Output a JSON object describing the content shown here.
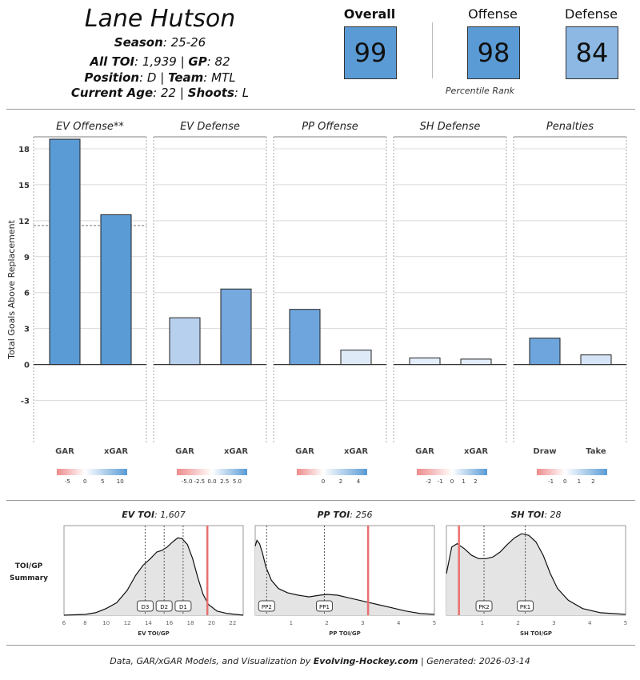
{
  "player": {
    "name": "Lane Hutson",
    "season_label": "Season",
    "season": "25-26",
    "toi_label": "All TOI",
    "toi": "1,939",
    "gp_label": "GP",
    "gp": "82",
    "position_label": "Position",
    "position": "D",
    "team_label": "Team",
    "team": "MTL",
    "age_label": "Current Age",
    "age": "22",
    "shoots_label": "Shoots",
    "shoots": "L"
  },
  "percentiles": {
    "overall_label": "Overall",
    "overall": "99",
    "overall_color": "#5b9bd5",
    "offense_label": "Offense",
    "offense": "98",
    "offense_color": "#5b9bd5",
    "defense_label": "Defense",
    "defense": "84",
    "defense_color": "#8cb8e3",
    "caption": "Percentile Rank"
  },
  "colors": {
    "blue": "#5b9bd5",
    "red": "#ef8a8a",
    "toi_line": "#e87070",
    "grid": "#d9d9d9"
  },
  "chart_data": [
    {
      "type": "bar",
      "ylabel": "Total Goals Above Replacement",
      "ylim": [
        -6.5,
        19
      ],
      "yticks": [
        -3,
        0,
        3,
        6,
        9,
        12,
        15,
        18
      ],
      "panels": [
        {
          "title": "EV Offense**",
          "categories": [
            "GAR",
            "xGAR"
          ],
          "values": [
            18.8,
            12.5
          ],
          "bar_colors": [
            "#5b9bd5",
            "#5b9bd5"
          ],
          "ref_line": 11.6,
          "legend": {
            "ticks": [
              "-5",
              "0",
              "5",
              "10"
            ],
            "range": [
              -8,
              12
            ]
          }
        },
        {
          "title": "EV Defense",
          "categories": [
            "GAR",
            "xGAR"
          ],
          "values": [
            3.9,
            6.3
          ],
          "bar_colors": [
            "#b6d0ee",
            "#76a9de"
          ],
          "legend": {
            "ticks": [
              "-5.0",
              "-2.5",
              "0.0",
              "2.5",
              "5.0"
            ],
            "range": [
              -7,
              7
            ]
          }
        },
        {
          "title": "PP Offense",
          "categories": [
            "GAR",
            "xGAR"
          ],
          "values": [
            4.6,
            1.2
          ],
          "bar_colors": [
            "#6ea5dc",
            "#dfeaf8"
          ],
          "legend": {
            "ticks": [
              "0",
              "2",
              "4"
            ],
            "range": [
              -3,
              5
            ]
          }
        },
        {
          "title": "SH Defense",
          "categories": [
            "GAR",
            "xGAR"
          ],
          "values": [
            0.55,
            0.45
          ],
          "bar_colors": [
            "#e4eefa",
            "#e4eefa"
          ],
          "legend": {
            "ticks": [
              "-2",
              "-1",
              "0",
              "1",
              "2"
            ],
            "range": [
              -3,
              3
            ]
          }
        },
        {
          "title": "Penalties",
          "categories": [
            "Draw",
            "Take"
          ],
          "values": [
            2.2,
            0.8
          ],
          "bar_colors": [
            "#6ea5dc",
            "#d6e5f6"
          ],
          "legend": {
            "ticks": [
              "-1",
              "0",
              "1",
              "2"
            ],
            "range": [
              -2,
              3
            ]
          }
        }
      ]
    },
    {
      "type": "area",
      "row_label_lines": [
        "TOI/GP",
        "Summary"
      ],
      "panels": [
        {
          "title_key": "EV TOI",
          "title_value": "1,607",
          "xlabel": "EV TOI/GP",
          "xlim": [
            6,
            23
          ],
          "xticks": [
            6,
            8,
            10,
            12,
            14,
            16,
            18,
            20,
            22
          ],
          "player_value": 19.6,
          "markers": [
            {
              "label": "D3",
              "x": 13.7
            },
            {
              "label": "D2",
              "x": 15.5
            },
            {
              "label": "D1",
              "x": 17.3
            }
          ],
          "density": [
            [
              6,
              0.0
            ],
            [
              8,
              0.01
            ],
            [
              9,
              0.03
            ],
            [
              10,
              0.08
            ],
            [
              11,
              0.15
            ],
            [
              12,
              0.3
            ],
            [
              12.8,
              0.48
            ],
            [
              13.5,
              0.6
            ],
            [
              14.2,
              0.68
            ],
            [
              14.8,
              0.76
            ],
            [
              15.3,
              0.78
            ],
            [
              15.8,
              0.82
            ],
            [
              16.3,
              0.88
            ],
            [
              16.8,
              0.93
            ],
            [
              17.2,
              0.92
            ],
            [
              17.7,
              0.85
            ],
            [
              18.2,
              0.68
            ],
            [
              18.7,
              0.45
            ],
            [
              19.2,
              0.25
            ],
            [
              19.7,
              0.13
            ],
            [
              20.5,
              0.05
            ],
            [
              21.5,
              0.02
            ],
            [
              23,
              0.0
            ]
          ]
        },
        {
          "title_key": "PP TOI",
          "title_value": "256",
          "xlabel": "PP TOI/GP",
          "xlim": [
            0,
            5
          ],
          "xticks": [
            1,
            2,
            3,
            4,
            5
          ],
          "player_value": 3.15,
          "markers": [
            {
              "label": "PP2",
              "x": 0.32
            },
            {
              "label": "PP1",
              "x": 1.93
            }
          ],
          "density": [
            [
              0,
              0.83
            ],
            [
              0.05,
              0.9
            ],
            [
              0.12,
              0.86
            ],
            [
              0.2,
              0.75
            ],
            [
              0.3,
              0.58
            ],
            [
              0.45,
              0.42
            ],
            [
              0.65,
              0.32
            ],
            [
              0.9,
              0.27
            ],
            [
              1.2,
              0.24
            ],
            [
              1.5,
              0.22
            ],
            [
              1.8,
              0.24
            ],
            [
              2.0,
              0.25
            ],
            [
              2.3,
              0.24
            ],
            [
              2.6,
              0.21
            ],
            [
              3.0,
              0.17
            ],
            [
              3.4,
              0.13
            ],
            [
              3.8,
              0.09
            ],
            [
              4.2,
              0.05
            ],
            [
              4.6,
              0.02
            ],
            [
              5,
              0.01
            ]
          ]
        },
        {
          "title_key": "SH TOI",
          "title_value": "28",
          "xlabel": "SH TOI/GP",
          "xlim": [
            0,
            5
          ],
          "xticks": [
            1,
            2,
            3,
            4,
            5
          ],
          "player_value": 0.35,
          "markers": [
            {
              "label": "PK2",
              "x": 1.05
            },
            {
              "label": "PK1",
              "x": 2.2
            }
          ],
          "density": [
            [
              0,
              0.5
            ],
            [
              0.15,
              0.82
            ],
            [
              0.3,
              0.86
            ],
            [
              0.5,
              0.8
            ],
            [
              0.7,
              0.72
            ],
            [
              0.9,
              0.68
            ],
            [
              1.1,
              0.68
            ],
            [
              1.3,
              0.7
            ],
            [
              1.5,
              0.76
            ],
            [
              1.7,
              0.85
            ],
            [
              1.9,
              0.93
            ],
            [
              2.1,
              0.98
            ],
            [
              2.3,
              0.96
            ],
            [
              2.5,
              0.88
            ],
            [
              2.7,
              0.72
            ],
            [
              2.9,
              0.5
            ],
            [
              3.1,
              0.32
            ],
            [
              3.4,
              0.18
            ],
            [
              3.8,
              0.08
            ],
            [
              4.3,
              0.03
            ],
            [
              5,
              0.01
            ]
          ]
        }
      ]
    }
  ],
  "footer": {
    "prefix": "Data, GAR/xGAR Models, and Visualization by",
    "brand": "Evolving-Hockey.com",
    "suffix": "| Generated: 2026-03-14"
  }
}
